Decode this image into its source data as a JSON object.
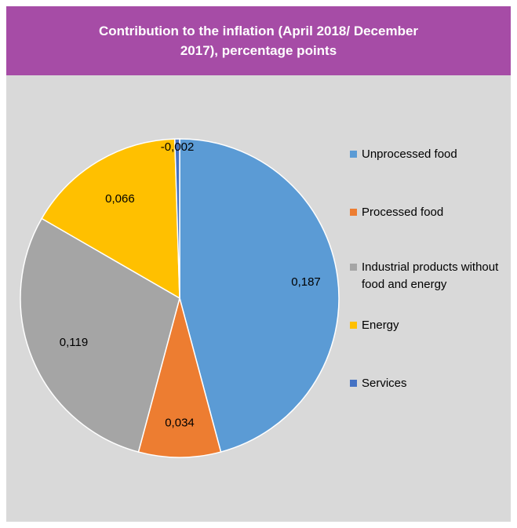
{
  "chart_data": {
    "type": "pie",
    "title": "Contribution to the inflation (April 2018/ December 2017), percentage points",
    "categories": [
      "Unprocessed food",
      "Processed food",
      "Industrial products without food and energy",
      "Energy",
      "Services"
    ],
    "values": [
      0.187,
      0.034,
      0.119,
      0.066,
      -0.002
    ],
    "value_labels": [
      "0,187",
      "0,034",
      "0,119",
      "0,066",
      "-0,002"
    ],
    "colors": [
      "#5b9bd5",
      "#ed7d31",
      "#a5a5a5",
      "#ffc000",
      "#4472c4"
    ],
    "legend_position": "right"
  },
  "legend": {
    "items": [
      {
        "label": "Unprocessed food",
        "color": "#5b9bd5"
      },
      {
        "label": "Processed food",
        "color": "#ed7d31"
      },
      {
        "label": "Industrial products without food and energy",
        "color": "#a5a5a5"
      },
      {
        "label": "Energy",
        "color": "#ffc000"
      },
      {
        "label": "Services",
        "color": "#4472c4"
      }
    ]
  }
}
